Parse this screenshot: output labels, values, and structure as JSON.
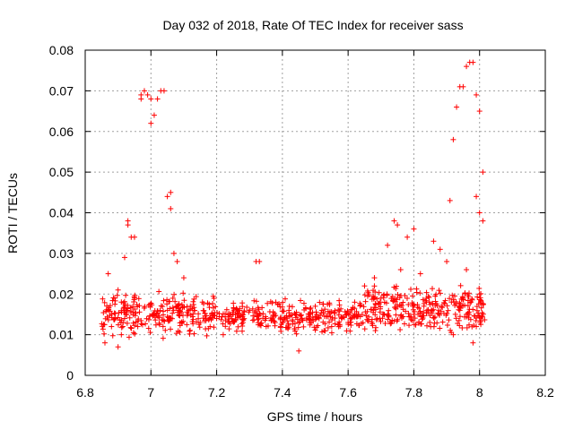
{
  "chart_data": {
    "type": "scatter",
    "title": "Day 032 of 2018, Rate Of TEC Index for receiver sass",
    "xlabel": "GPS time / hours",
    "ylabel": "ROTI / TECUs",
    "xlim": [
      6.8,
      8.2
    ],
    "ylim": [
      0,
      0.08
    ],
    "xticks": [
      "6.8",
      "7",
      "7.2",
      "7.4",
      "7.6",
      "7.8",
      "8",
      "8.2"
    ],
    "yticks": [
      "0",
      "0.01",
      "0.02",
      "0.03",
      "0.04",
      "0.05",
      "0.06",
      "0.07",
      "0.08"
    ],
    "grid": true,
    "marker": "+",
    "color": "#ff0000",
    "series": [
      {
        "name": "sass",
        "points": [
          [
            6.86,
            0.008
          ],
          [
            6.87,
            0.016
          ],
          [
            6.87,
            0.025
          ],
          [
            6.88,
            0.012
          ],
          [
            6.89,
            0.019
          ],
          [
            6.9,
            0.007
          ],
          [
            6.9,
            0.021
          ],
          [
            6.91,
            0.01
          ],
          [
            6.92,
            0.029
          ],
          [
            6.92,
            0.014
          ],
          [
            6.93,
            0.038
          ],
          [
            6.93,
            0.037
          ],
          [
            6.94,
            0.034
          ],
          [
            6.95,
            0.034
          ],
          [
            6.95,
            0.019
          ],
          [
            6.96,
            0.012
          ],
          [
            6.97,
            0.068
          ],
          [
            6.97,
            0.069
          ],
          [
            6.98,
            0.07
          ],
          [
            6.99,
            0.069
          ],
          [
            7.0,
            0.068
          ],
          [
            7.0,
            0.062
          ],
          [
            7.01,
            0.064
          ],
          [
            7.02,
            0.068
          ],
          [
            7.03,
            0.07
          ],
          [
            7.04,
            0.07
          ],
          [
            7.05,
            0.044
          ],
          [
            7.06,
            0.045
          ],
          [
            7.06,
            0.041
          ],
          [
            7.07,
            0.03
          ],
          [
            7.08,
            0.028
          ],
          [
            7.1,
            0.024
          ],
          [
            7.12,
            0.017
          ],
          [
            7.15,
            0.013
          ],
          [
            7.18,
            0.012
          ],
          [
            7.2,
            0.014
          ],
          [
            7.22,
            0.01
          ],
          [
            7.25,
            0.015
          ],
          [
            7.28,
            0.013
          ],
          [
            7.3,
            0.016
          ],
          [
            7.32,
            0.028
          ],
          [
            7.33,
            0.028
          ],
          [
            7.35,
            0.014
          ],
          [
            7.38,
            0.018
          ],
          [
            7.4,
            0.013
          ],
          [
            7.42,
            0.016
          ],
          [
            7.45,
            0.006
          ],
          [
            7.48,
            0.014
          ],
          [
            7.5,
            0.017
          ],
          [
            7.52,
            0.016
          ],
          [
            7.55,
            0.012
          ],
          [
            7.58,
            0.014
          ],
          [
            7.6,
            0.013
          ],
          [
            7.62,
            0.018
          ],
          [
            7.65,
            0.022
          ],
          [
            7.68,
            0.024
          ],
          [
            7.7,
            0.019
          ],
          [
            7.72,
            0.032
          ],
          [
            7.74,
            0.038
          ],
          [
            7.75,
            0.037
          ],
          [
            7.76,
            0.026
          ],
          [
            7.78,
            0.034
          ],
          [
            7.8,
            0.036
          ],
          [
            7.82,
            0.025
          ],
          [
            7.84,
            0.016
          ],
          [
            7.86,
            0.033
          ],
          [
            7.88,
            0.031
          ],
          [
            7.9,
            0.028
          ],
          [
            7.91,
            0.043
          ],
          [
            7.92,
            0.058
          ],
          [
            7.93,
            0.066
          ],
          [
            7.94,
            0.071
          ],
          [
            7.95,
            0.071
          ],
          [
            7.96,
            0.076
          ],
          [
            7.97,
            0.077
          ],
          [
            7.98,
            0.077
          ],
          [
            7.99,
            0.069
          ],
          [
            8.0,
            0.065
          ],
          [
            7.99,
            0.044
          ],
          [
            8.0,
            0.04
          ],
          [
            8.01,
            0.05
          ],
          [
            8.01,
            0.038
          ],
          [
            8.0,
            0.02
          ],
          [
            7.99,
            0.012
          ],
          [
            7.98,
            0.008
          ],
          [
            7.96,
            0.026
          ],
          [
            7.94,
            0.016
          ],
          [
            7.92,
            0.01
          ]
        ]
      }
    ],
    "cluster_bands": [
      {
        "x_range": [
          6.85,
          7.2
        ],
        "y_mean": 0.015,
        "y_spread": 0.007,
        "count": 260
      },
      {
        "x_range": [
          7.2,
          7.65
        ],
        "y_mean": 0.0145,
        "y_spread": 0.005,
        "count": 300
      },
      {
        "x_range": [
          7.65,
          8.02
        ],
        "y_mean": 0.016,
        "y_spread": 0.008,
        "count": 300
      }
    ]
  }
}
